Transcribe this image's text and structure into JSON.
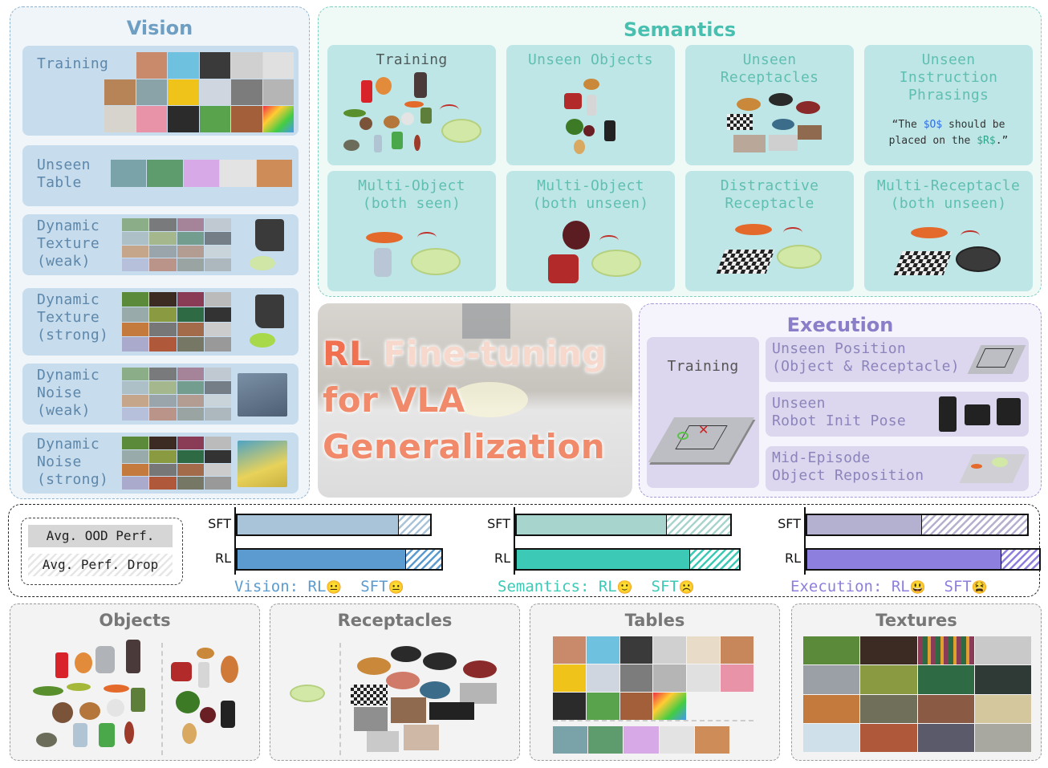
{
  "vision": {
    "title": "Vision",
    "color": "#6f9ec3",
    "rows": [
      {
        "label": "Training"
      },
      {
        "label": "Unseen\nTable"
      },
      {
        "label": "Dynamic\nTexture\n(weak)"
      },
      {
        "label": "Dynamic\nTexture\n(strong)"
      },
      {
        "label": "Dynamic\nNoise\n(weak)"
      },
      {
        "label": "Dynamic\nNoise\n(strong)"
      }
    ]
  },
  "semantics": {
    "title": "Semantics",
    "color": "#49bfb0",
    "cards": [
      {
        "label": "Training",
        "dark": true
      },
      {
        "label": "Unseen Objects"
      },
      {
        "label": "Unseen\nReceptacles"
      },
      {
        "label": "Unseen\nInstruction\nPhrasings"
      },
      {
        "label": "Multi-Object\n(both seen)"
      },
      {
        "label": "Multi-Object\n(both unseen)"
      },
      {
        "label": "Distractive\nReceptacle"
      },
      {
        "label": "Multi-Receptacle\n(both unseen)"
      }
    ],
    "instruction": {
      "p1": "“The ",
      "obj": "$O$",
      "p2": " should be",
      "p3": "placed on the ",
      "rec": "$R$",
      "p4": ".”"
    }
  },
  "center": {
    "line1a": "RL",
    "line1b": "Fine-tuning",
    "line2": "for VLA",
    "line3": "Generalization"
  },
  "execution": {
    "title": "Execution",
    "color": "#8a7ec8",
    "training_label": "Training",
    "items": [
      {
        "label": "Unseen Position\n(Object & Receptacle)"
      },
      {
        "label": "Unseen\nRobot Init Pose"
      },
      {
        "label": "Mid-Episode\nObject Reposition"
      }
    ]
  },
  "legend": {
    "ood": "Avg. OOD Perf.",
    "drop": "Avg. Perf. Drop"
  },
  "chart_data": [
    {
      "type": "bar",
      "title": "Vision",
      "categories": [
        "SFT",
        "RL"
      ],
      "series": [
        {
          "name": "Avg. OOD Perf.",
          "values": [
            0.7,
            0.73
          ]
        },
        {
          "name": "Avg. Perf. Drop",
          "values": [
            0.14,
            0.16
          ]
        }
      ],
      "colors": {
        "sft": "#a9c4d8",
        "rl": "#5b9bd0"
      },
      "caption": {
        "prefix": "Vision: RL",
        "sft": "SFT",
        "rl_emoji": "😐",
        "sft_emoji": "😐"
      }
    },
    {
      "type": "bar",
      "title": "Semantics",
      "categories": [
        "SFT",
        "RL"
      ],
      "series": [
        {
          "name": "Avg. OOD Perf.",
          "values": [
            0.65,
            0.75
          ]
        },
        {
          "name": "Avg. Perf. Drop",
          "values": [
            0.28,
            0.22
          ]
        }
      ],
      "colors": {
        "sft": "#a7d5cd",
        "rl": "#3cc9b6"
      },
      "caption": {
        "prefix": "Semantics: RL",
        "sft": "SFT",
        "rl_emoji": "🙂",
        "sft_emoji": "☹️"
      }
    },
    {
      "type": "bar",
      "title": "Execution",
      "categories": [
        "SFT",
        "RL"
      ],
      "series": [
        {
          "name": "Avg. OOD Perf.",
          "values": [
            0.5,
            0.84
          ]
        },
        {
          "name": "Avg. Perf. Drop",
          "values": [
            0.46,
            0.17
          ]
        }
      ],
      "colors": {
        "sft": "#b4b0cf",
        "rl": "#8c7fdd"
      },
      "caption": {
        "prefix": "Execution: RL",
        "sft": "SFT",
        "rl_emoji": "😃",
        "sft_emoji": "😫"
      }
    }
  ],
  "bottom": [
    {
      "title": "Objects"
    },
    {
      "title": "Receptacles"
    },
    {
      "title": "Tables"
    },
    {
      "title": "Textures"
    }
  ]
}
